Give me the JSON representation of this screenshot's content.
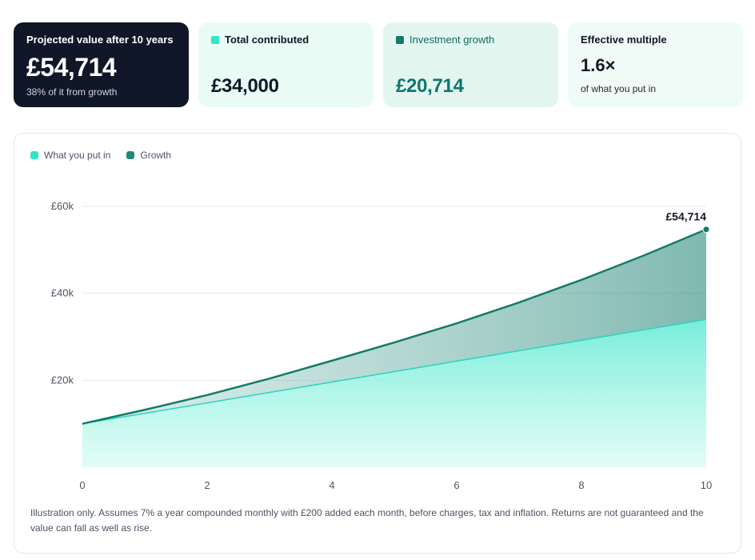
{
  "cards": {
    "projected": {
      "label": "Projected value after 10 years",
      "value": "£54,714",
      "sub": "38% of it from growth"
    },
    "contributed": {
      "label": "Total contributed",
      "value": "£34,000"
    },
    "growth": {
      "label": "Investment growth",
      "value": "£20,714"
    },
    "multiple": {
      "label": "Effective multiple",
      "value": "1.6×",
      "sub": "of what you put in"
    }
  },
  "colors": {
    "dark_card": "#0f1729",
    "contributed": "#2dd4bf",
    "growth": "#137b6a"
  },
  "legend": [
    {
      "label": "What you put in",
      "color": "#2ee6c6"
    },
    {
      "label": "Growth",
      "color": "#1f8a78"
    }
  ],
  "chart_data": {
    "type": "area",
    "x": [
      0,
      1,
      2,
      3,
      4,
      5,
      6,
      7,
      8,
      9,
      10
    ],
    "series": [
      {
        "name": "What you put in",
        "values": [
          10000,
          12400,
          14800,
          17200,
          19600,
          22000,
          24400,
          26800,
          29200,
          31600,
          34000
        ]
      },
      {
        "name": "Growth",
        "values": [
          10000,
          13200,
          16600,
          20400,
          24500,
          28700,
          33100,
          37900,
          43100,
          48700,
          54714
        ]
      }
    ],
    "x_ticks": [
      "0",
      "2",
      "4",
      "6",
      "8",
      "10"
    ],
    "y_ticks": [
      "£20k",
      "£40k",
      "£60k"
    ],
    "ylim": [
      0,
      60000
    ],
    "xlim": [
      0,
      10
    ],
    "end_label": "£54,714",
    "grid": true
  },
  "footnote": "Illustration only. Assumes 7% a year compounded monthly with £200 added each month, before charges, tax and inflation. Returns are not guaranteed and the value can fall as well as rise."
}
